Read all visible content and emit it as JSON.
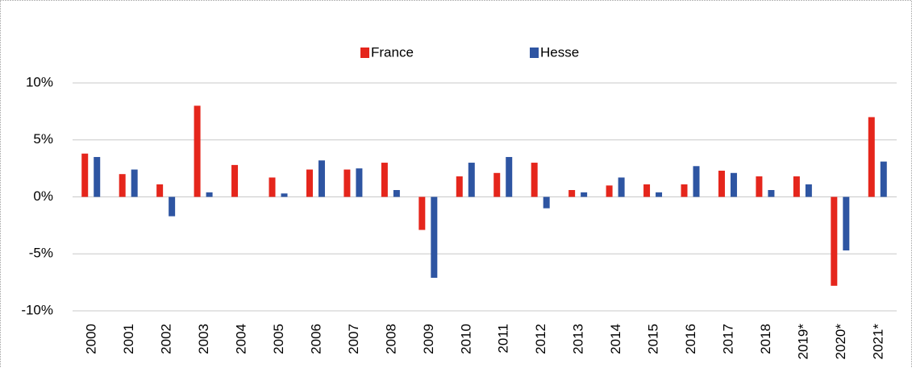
{
  "chart_data": {
    "type": "bar",
    "categories": [
      "2000",
      "2001",
      "2002",
      "2003",
      "2004",
      "2005",
      "2006",
      "2007",
      "2008",
      "2009",
      "2010",
      "2011",
      "2012",
      "2013",
      "2014",
      "2015",
      "2016",
      "2017",
      "2018",
      "2019*",
      "2020*",
      "2021*"
    ],
    "series": [
      {
        "name": "France",
        "color": "#e5261c",
        "values": [
          3.8,
          2.0,
          1.1,
          8.0,
          2.8,
          1.7,
          2.4,
          2.4,
          3.0,
          -2.9,
          1.8,
          2.1,
          3.0,
          0.6,
          1.0,
          1.1,
          1.1,
          2.3,
          1.8,
          1.8,
          -7.8,
          7.0
        ]
      },
      {
        "name": "Hesse",
        "color": "#2e55a2",
        "values": [
          3.5,
          2.4,
          -1.7,
          0.4,
          0,
          0.3,
          3.2,
          2.5,
          0.6,
          -7.1,
          3.0,
          3.5,
          -1.0,
          0.4,
          1.7,
          0.4,
          2.7,
          2.1,
          0.6,
          1.1,
          -4.7,
          3.1
        ]
      }
    ],
    "ylim": [
      -10,
      10
    ],
    "yticks": [
      {
        "value": -10,
        "label": "-10%"
      },
      {
        "value": -5,
        "label": "-5%"
      },
      {
        "value": 0,
        "label": "0%"
      },
      {
        "value": 5,
        "label": "5%"
      },
      {
        "value": 10,
        "label": "10%"
      }
    ],
    "grid": true,
    "legend": "top"
  }
}
